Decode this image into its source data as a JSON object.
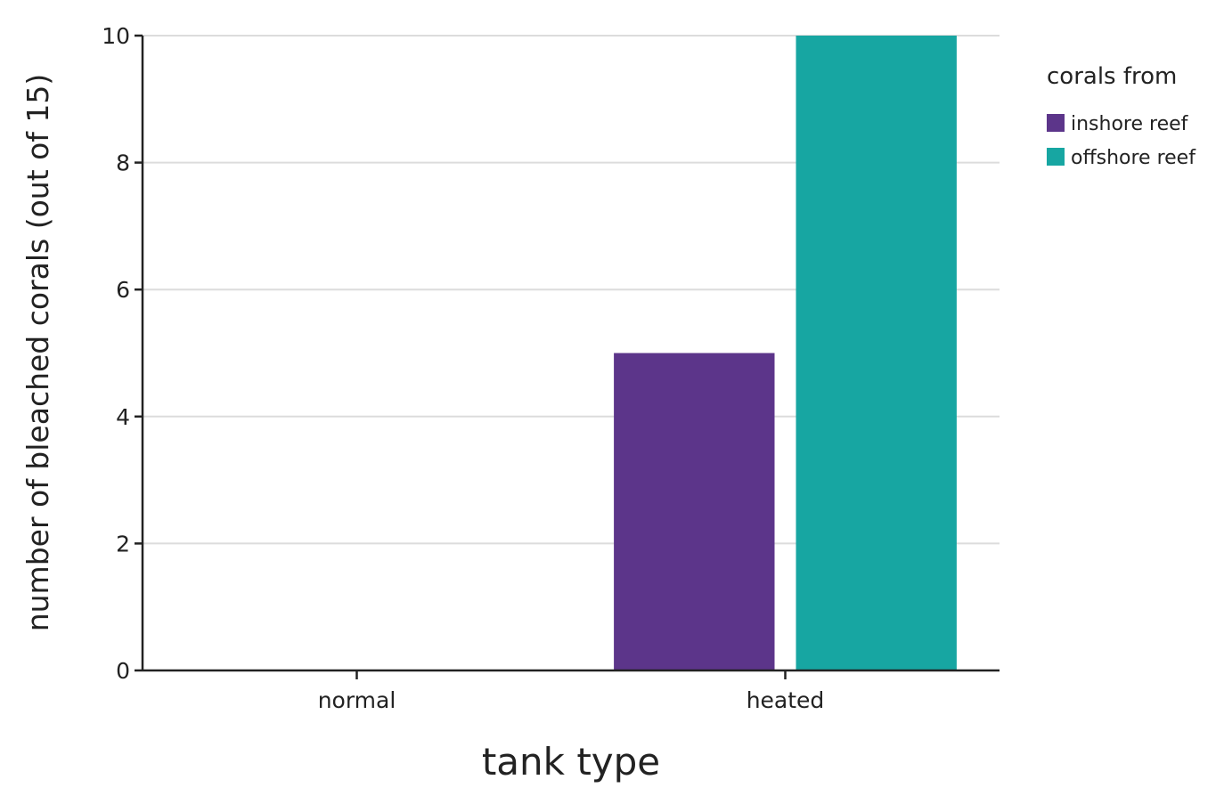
{
  "chart_data": {
    "type": "bar",
    "categories": [
      "normal",
      "heated"
    ],
    "series": [
      {
        "name": "inshore reef",
        "color": "#5c358a",
        "values": [
          0,
          5
        ]
      },
      {
        "name": "offshore reef",
        "color": "#17a6a2",
        "values": [
          0,
          10
        ]
      }
    ],
    "xlabel": "tank type",
    "ylabel": "number of bleached corals (out of 15)",
    "ylim": [
      0,
      10
    ],
    "yticks": [
      0,
      2,
      4,
      6,
      8,
      10
    ],
    "grid": true,
    "legend": {
      "title": "corals from",
      "placement": "right"
    }
  }
}
